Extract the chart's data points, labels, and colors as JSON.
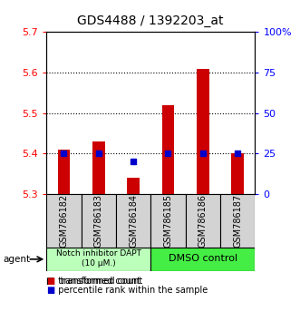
{
  "title": "GDS4488 / 1392203_at",
  "samples": [
    "GSM786182",
    "GSM786183",
    "GSM786184",
    "GSM786185",
    "GSM786186",
    "GSM786187"
  ],
  "transformed_counts": [
    5.41,
    5.43,
    5.34,
    5.52,
    5.61,
    5.4
  ],
  "percentile_ranks": [
    25,
    25,
    20,
    25,
    25,
    25
  ],
  "ylim_left": [
    5.3,
    5.7
  ],
  "ylim_right": [
    0,
    100
  ],
  "yticks_left": [
    5.3,
    5.4,
    5.5,
    5.6,
    5.7
  ],
  "yticks_right": [
    0,
    25,
    50,
    75,
    100
  ],
  "ytick_labels_right": [
    "0",
    "25",
    "50",
    "75",
    "100%"
  ],
  "bar_color": "#cc0000",
  "dot_color": "#0000cc",
  "baseline": 5.3,
  "group1_label": "Notch inhibitor DAPT\n(10 μM.)",
  "group2_label": "DMSO control",
  "group1_color": "#bbffbb",
  "group2_color": "#44ee44",
  "group1_indices": [
    0,
    1,
    2
  ],
  "group2_indices": [
    3,
    4,
    5
  ],
  "legend_red": "transformed count",
  "legend_blue": "percentile rank within the sample",
  "agent_label": "agent",
  "bar_width": 0.35,
  "sample_box_color": "#d3d3d3",
  "title_fontsize": 10,
  "tick_fontsize": 8,
  "label_fontsize": 7
}
